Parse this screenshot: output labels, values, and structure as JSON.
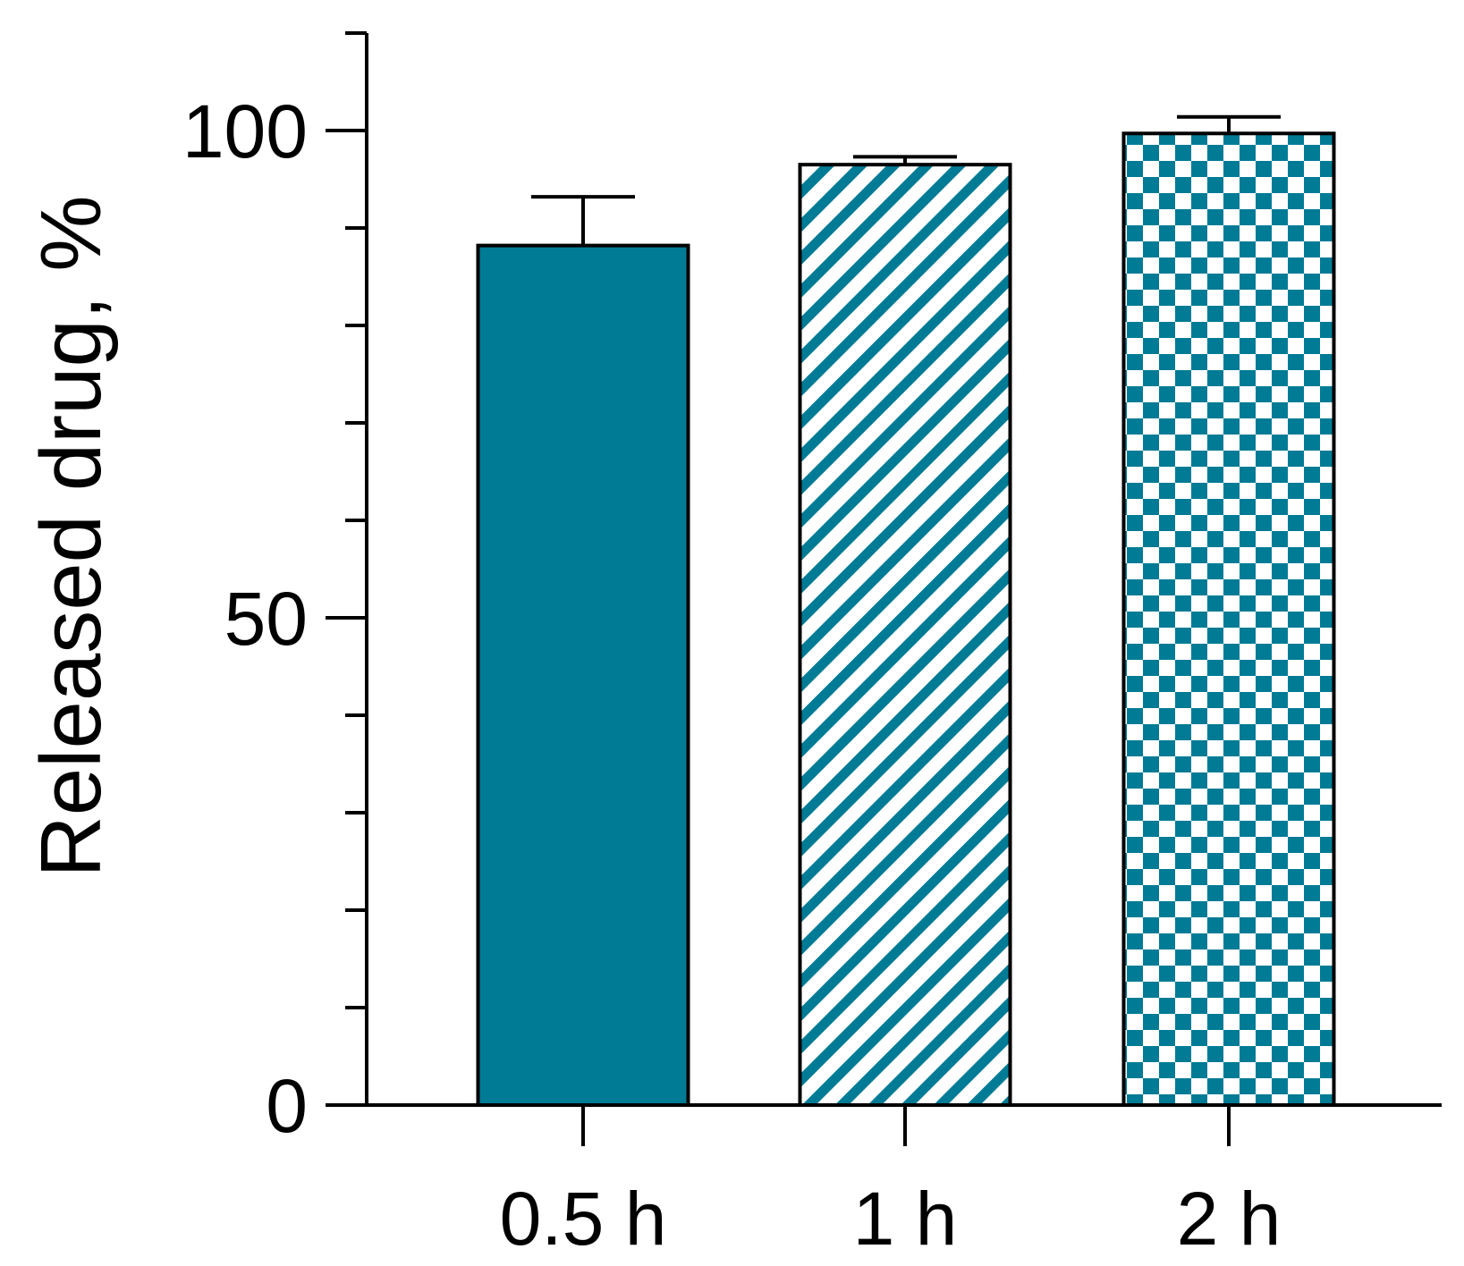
{
  "chart_data": {
    "type": "bar",
    "categories": [
      "0.5 h",
      "1 h",
      "2 h"
    ],
    "values": [
      88.2,
      96.5,
      99.7
    ],
    "errors": [
      5.0,
      0.8,
      1.7
    ],
    "ylabel": "Released drug, %",
    "xlabel": "",
    "ylim": [
      0,
      110
    ],
    "yticks_major": [
      0,
      50,
      100
    ],
    "yticks_major_labels": [
      "0",
      "50",
      "100"
    ],
    "yticks_minor": [
      10,
      20,
      30,
      40,
      60,
      70,
      80,
      90,
      110
    ],
    "bar_fills": [
      "solid",
      "diagonal-stripes",
      "checkerboard"
    ],
    "grid": false,
    "legend": "none"
  },
  "colors": {
    "bar_fill": "#007B96",
    "axis": "#000000",
    "background": "#ffffff"
  }
}
